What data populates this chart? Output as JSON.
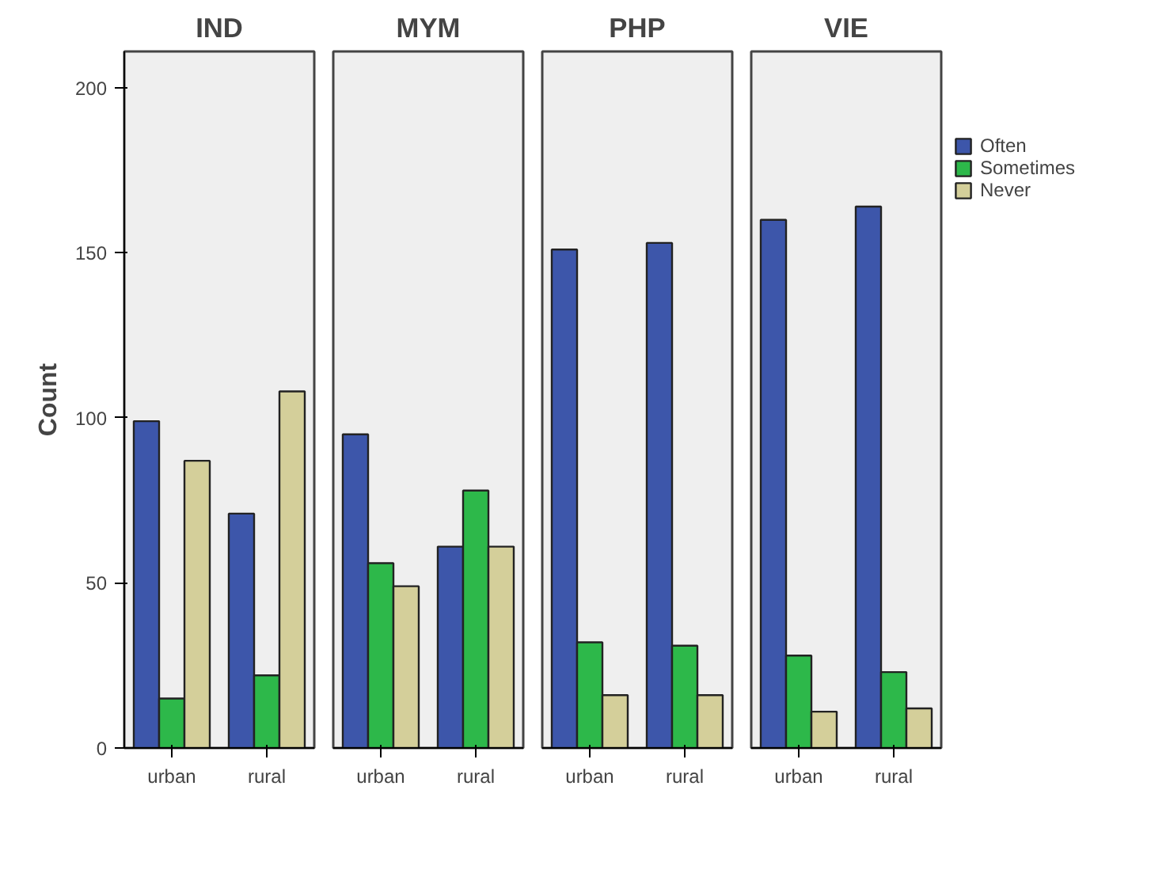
{
  "chart_data": [
    {
      "type": "bar",
      "title": "IND",
      "ylabel": "Count",
      "categories": [
        "urban",
        "rural"
      ],
      "ylim": [
        0,
        211
      ],
      "yticks": [
        0,
        50,
        100,
        150,
        200
      ],
      "series": [
        {
          "color": "#3d56aa",
          "values": [
            99,
            71
          ]
        },
        {
          "color": "#2db84a",
          "values": [
            15,
            22
          ]
        },
        {
          "color": "#d4cf9a",
          "values": [
            87,
            108
          ]
        }
      ]
    },
    {
      "type": "bar",
      "title": "MYM",
      "categories": [
        "urban",
        "rural"
      ],
      "ylim": [
        0,
        211
      ],
      "yticks": [
        0,
        50,
        100,
        150,
        200
      ],
      "tick_labels": "x",
      "series": [
        {
          "color": "#3d56aa",
          "values": [
            95,
            61
          ]
        },
        {
          "color": "#2db84a",
          "values": [
            56,
            78
          ]
        },
        {
          "color": "#d4cf9a",
          "values": [
            49,
            61
          ]
        }
      ]
    },
    {
      "type": "bar",
      "title": "PHP",
      "categories": [
        "urban",
        "rural"
      ],
      "ylim": [
        0,
        211
      ],
      "yticks": [
        0,
        50,
        100,
        150,
        200
      ],
      "tick_labels": "x",
      "series": [
        {
          "color": "#3d56aa",
          "values": [
            151,
            153
          ]
        },
        {
          "color": "#2db84a",
          "values": [
            32,
            31
          ]
        },
        {
          "color": "#d4cf9a",
          "values": [
            16,
            16
          ]
        }
      ]
    },
    {
      "type": "bar",
      "title": "VIE",
      "categories": [
        "urban",
        "rural"
      ],
      "ylim": [
        0,
        211
      ],
      "yticks": [
        0,
        50,
        100,
        150,
        200
      ],
      "tick_labels": "x",
      "legend": "top right",
      "series": [
        {
          "name": "Often",
          "color": "#3d56aa",
          "values": [
            160,
            164
          ]
        },
        {
          "name": "Sometimes",
          "color": "#2db84a",
          "values": [
            28,
            23
          ]
        },
        {
          "name": "Never",
          "color": "#d4cf9a",
          "values": [
            11,
            12
          ]
        }
      ]
    }
  ]
}
